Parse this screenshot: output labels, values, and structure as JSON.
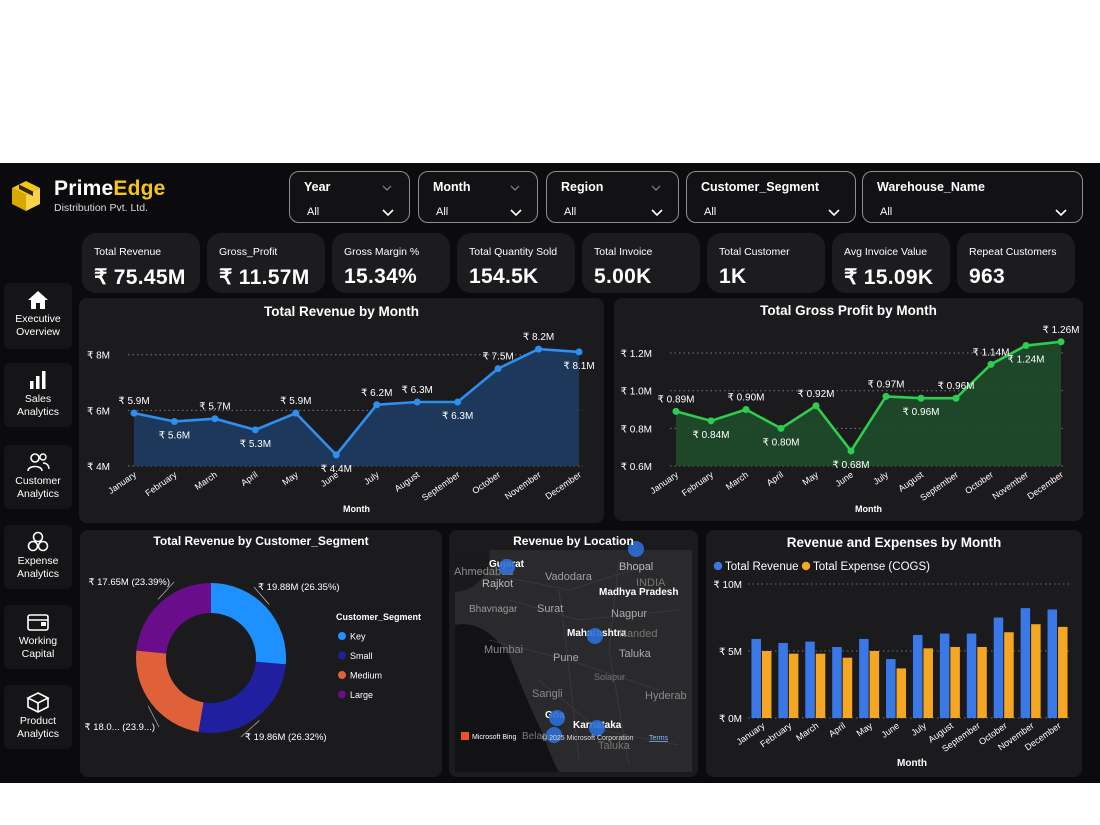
{
  "brand": {
    "name_a": "Prime",
    "name_b": "Edge",
    "subtitle": "Distribution Pvt. Ltd.",
    "accent": "#f5c518"
  },
  "filters": [
    {
      "label": "Year",
      "value": "All"
    },
    {
      "label": "Month",
      "value": "All"
    },
    {
      "label": "Region",
      "value": "All"
    },
    {
      "label": "Customer_Segment",
      "value": "All"
    },
    {
      "label": "Warehouse_Name",
      "value": "All"
    }
  ],
  "kpis": [
    {
      "label": "Total Revenue",
      "value": "₹ 75.45M"
    },
    {
      "label": "Gross_Profit",
      "value": "₹ 11.57M"
    },
    {
      "label": "Gross Margin %",
      "value": "15.34%"
    },
    {
      "label": "Total Quantity Sold",
      "value": "154.5K"
    },
    {
      "label": "Total Invoice",
      "value": "5.00K"
    },
    {
      "label": "Total Customer",
      "value": "1K"
    },
    {
      "label": "Avg Invoice Value",
      "value": "₹ 15.09K"
    },
    {
      "label": "Repeat Customers",
      "value": "963"
    }
  ],
  "nav": [
    {
      "label_1": "Executive",
      "label_2": "Overview",
      "icon": "home-icon"
    },
    {
      "label_1": "Sales",
      "label_2": "Analytics",
      "icon": "bar-chart-icon"
    },
    {
      "label_1": "Customer",
      "label_2": "Analytics",
      "icon": "users-icon"
    },
    {
      "label_1": "Expense",
      "label_2": "Analytics",
      "icon": "coins-icon"
    },
    {
      "label_1": "Working",
      "label_2": "Capital",
      "icon": "wallet-icon"
    },
    {
      "label_1": "Product",
      "label_2": "Analytics",
      "icon": "box-icon"
    }
  ],
  "chart_data": [
    {
      "id": "revenue",
      "type": "area",
      "title": "Total Revenue by Month",
      "xlabel": "Month",
      "categories": [
        "January",
        "February",
        "March",
        "April",
        "May",
        "June",
        "July",
        "August",
        "September",
        "October",
        "November",
        "December"
      ],
      "values": [
        5.9,
        5.6,
        5.7,
        5.3,
        5.9,
        4.4,
        6.2,
        6.3,
        6.3,
        7.5,
        8.2,
        8.1
      ],
      "labels": [
        "₹ 5.9M",
        "₹ 5.6M",
        "₹ 5.7M",
        "₹ 5.3M",
        "₹ 5.9M",
        "₹ 4.4M",
        "₹ 6.2M",
        "₹ 6.3M",
        "₹ 6.3M",
        "₹ 7.5M",
        "₹ 8.2M",
        "₹ 8.1M"
      ],
      "yticks": [
        4,
        6,
        8
      ],
      "ytick_labels": [
        "₹ 4M",
        "₹ 6M",
        "₹ 8M"
      ],
      "ylim": [
        4,
        8.6
      ],
      "color": "#2d8ff0",
      "fill": "#1d3a5e"
    },
    {
      "id": "profit",
      "type": "area",
      "title": "Total Gross Profit by Month",
      "xlabel": "Month",
      "categories": [
        "January",
        "February",
        "March",
        "April",
        "May",
        "June",
        "July",
        "August",
        "September",
        "October",
        "November",
        "December"
      ],
      "values": [
        0.89,
        0.84,
        0.9,
        0.8,
        0.92,
        0.68,
        0.97,
        0.96,
        0.96,
        1.14,
        1.24,
        1.26
      ],
      "labels": [
        "₹ 0.89M",
        "₹ 0.84M",
        "₹ 0.90M",
        "₹ 0.80M",
        "₹ 0.92M",
        "₹ 0.68M",
        "₹ 0.97M",
        "₹ 0.96M",
        "₹ 0.96M",
        "₹ 1.14M",
        "₹ 1.24M",
        "₹ 1.26M"
      ],
      "yticks": [
        0.6,
        0.8,
        1.0,
        1.2
      ],
      "ytick_labels": [
        "₹ 0.6M",
        "₹ 0.8M",
        "₹ 1.0M",
        "₹ 1.2M"
      ],
      "ylim": [
        0.6,
        1.28
      ],
      "color": "#2ecc4f",
      "fill": "#1f4a2a"
    },
    {
      "id": "segment",
      "type": "pie",
      "title": "Total Revenue by Customer_Segment",
      "legend_title": "Customer_Segment",
      "slices": [
        {
          "name": "Key",
          "value": 19.88,
          "label": "₹ 19.88M (26.35%)",
          "color": "#1e90ff"
        },
        {
          "name": "Small",
          "value": 19.86,
          "label": "₹ 19.86M (26.32%)",
          "color": "#1f1fa0"
        },
        {
          "name": "Medium",
          "value": 18.06,
          "label": "₹ 18.0... (23.9...)",
          "color": "#e0603a"
        },
        {
          "name": "Large",
          "value": 17.65,
          "label": "₹ 17.65M (23.39%)",
          "color": "#6a0d8a"
        }
      ]
    },
    {
      "id": "revexp",
      "type": "bar",
      "title": "Revenue and Expenses by Month",
      "xlabel": "Month",
      "categories": [
        "January",
        "February",
        "March",
        "April",
        "May",
        "June",
        "July",
        "August",
        "September",
        "October",
        "November",
        "December"
      ],
      "series": [
        {
          "name": "Total Revenue",
          "color": "#3b78e7",
          "values": [
            5.9,
            5.6,
            5.7,
            5.3,
            5.9,
            4.4,
            6.2,
            6.3,
            6.3,
            7.5,
            8.2,
            8.1
          ]
        },
        {
          "name": "Total Expense (COGS)",
          "color": "#f5a623",
          "values": [
            5.0,
            4.8,
            4.8,
            4.5,
            5.0,
            3.7,
            5.2,
            5.3,
            5.3,
            6.4,
            7.0,
            6.8
          ]
        }
      ],
      "yticks": [
        0,
        5,
        10
      ],
      "ytick_labels": [
        "₹ 0M",
        "₹ 5M",
        "₹ 10M"
      ],
      "ylim": [
        0,
        10
      ]
    }
  ],
  "map": {
    "title": "Revenue by Location",
    "places": [
      "Gujarat",
      "Rajkot",
      "Ahmedabad",
      "Vadodara",
      "Bhopal",
      "INDIA",
      "Madhya Pradesh",
      "Bhavnagar",
      "Surat",
      "Nagpur",
      "Maharashtra",
      "Nanded",
      "Mumbai",
      "Pune",
      "Taluka",
      "Solapur",
      "Sangli",
      "Hyderab",
      "Goa",
      "Karnataka",
      "Belag",
      "Taluka"
    ],
    "credit": "Microsoft Bing",
    "copyright": "© 2025 Microsoft Corporation",
    "terms": "Terms",
    "bubble_color": "#2b6fd6"
  }
}
